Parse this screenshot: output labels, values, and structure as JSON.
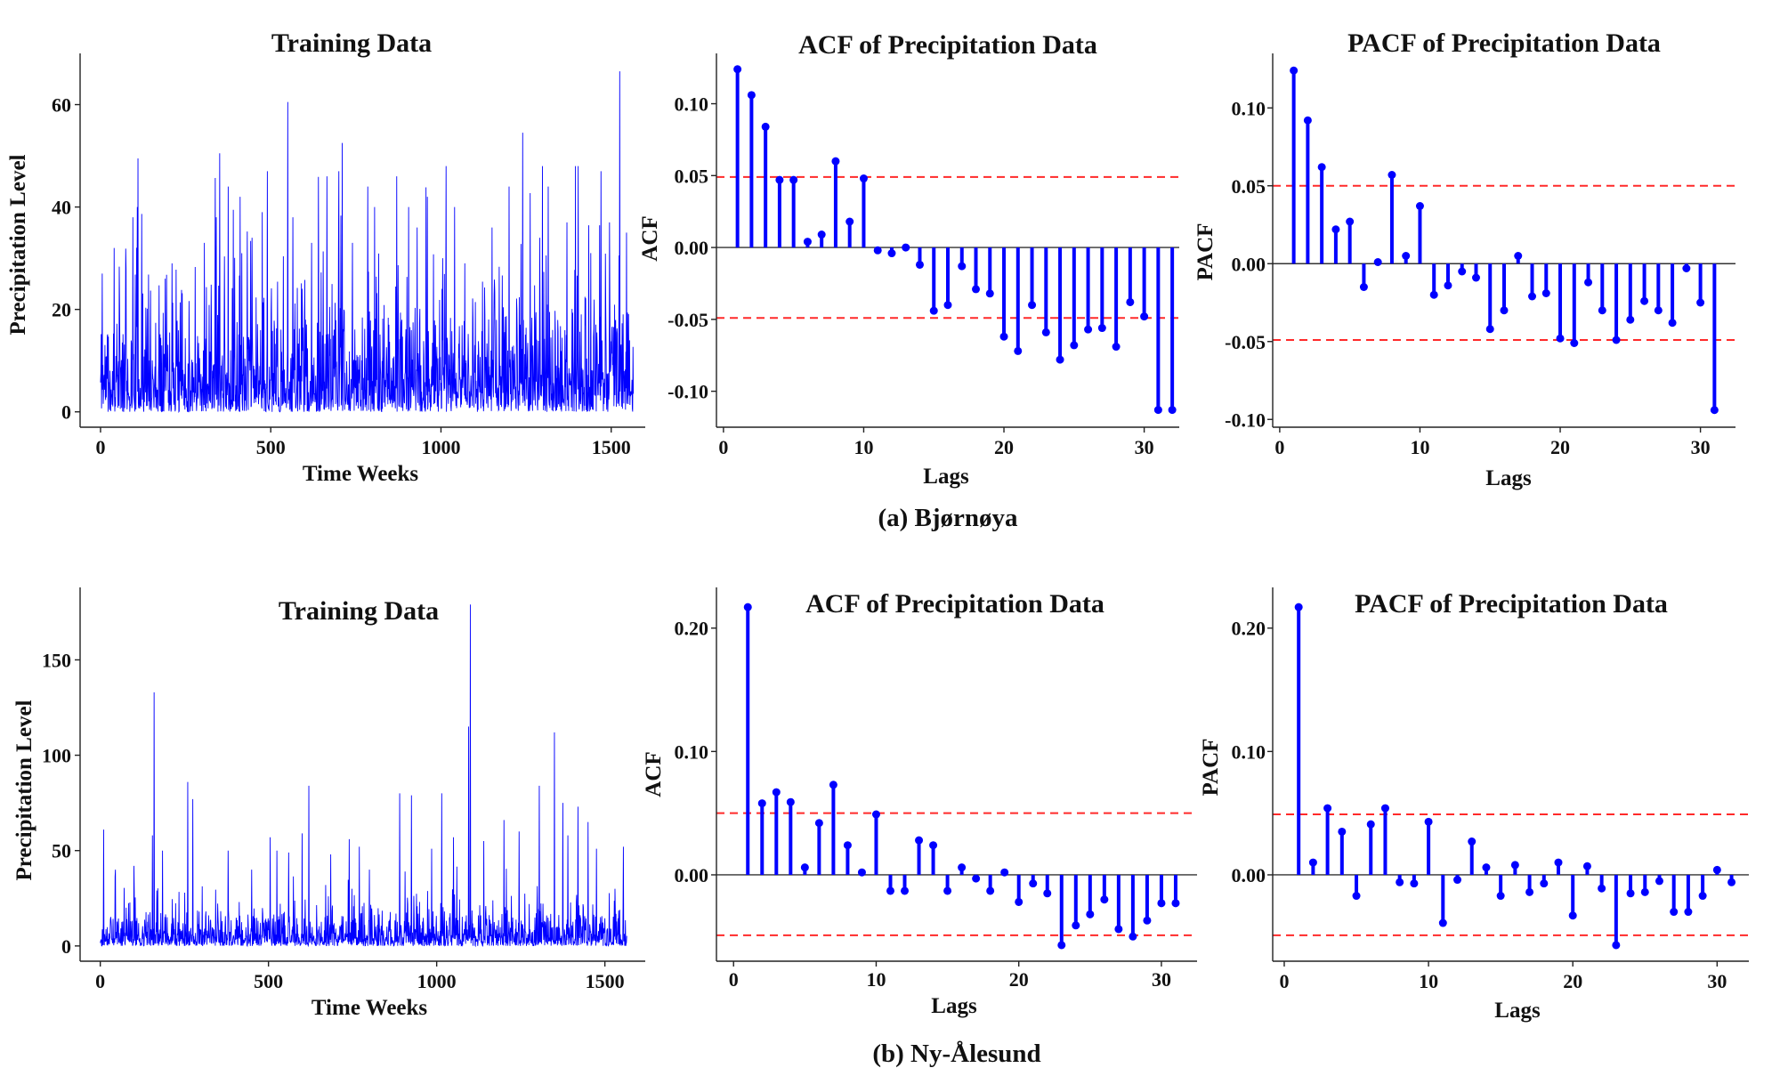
{
  "figure": {
    "captions": [
      "(a)  Bjørnøya",
      "(b) Ny-Ålesund"
    ]
  },
  "colors": {
    "series": "#0000ff",
    "bound": "#ff2a2a",
    "axis": "#222222"
  },
  "chart_data": [
    {
      "id": "a_training",
      "type": "line",
      "title": "Training Data",
      "xlabel": "Time Weeks",
      "ylabel": "Precipitation Level",
      "xlim": [
        -60,
        1600
      ],
      "ylim": [
        -3,
        70
      ],
      "xticks": [
        0,
        500,
        1000,
        1500
      ],
      "yticks": [
        0,
        20,
        40,
        60
      ],
      "n_points": 1566,
      "seed": 11,
      "scale": 8.0,
      "cap": 48,
      "peaks": [
        [
          5,
          27
        ],
        [
          40,
          32
        ],
        [
          75,
          28
        ],
        [
          95,
          38
        ],
        [
          108,
          40
        ],
        [
          110,
          49.5
        ],
        [
          190,
          26
        ],
        [
          210,
          29
        ],
        [
          305,
          33
        ],
        [
          340,
          38
        ],
        [
          350,
          50.5
        ],
        [
          375,
          44
        ],
        [
          410,
          42
        ],
        [
          445,
          34
        ],
        [
          475,
          39
        ],
        [
          490,
          47
        ],
        [
          550,
          60.5
        ],
        [
          565,
          38
        ],
        [
          620,
          33
        ],
        [
          665,
          46
        ],
        [
          700,
          47
        ],
        [
          710,
          52.5
        ],
        [
          740,
          33
        ],
        [
          785,
          44
        ],
        [
          805,
          40
        ],
        [
          870,
          46
        ],
        [
          905,
          40
        ],
        [
          930,
          36
        ],
        [
          960,
          42
        ],
        [
          1005,
          30
        ],
        [
          1040,
          40
        ],
        [
          1070,
          29
        ],
        [
          1150,
          36
        ],
        [
          1200,
          44
        ],
        [
          1240,
          54.5
        ],
        [
          1290,
          34
        ],
        [
          1315,
          44
        ],
        [
          1370,
          37
        ],
        [
          1395,
          48
        ],
        [
          1440,
          31
        ],
        [
          1470,
          47
        ],
        [
          1495,
          37
        ],
        [
          1525,
          66.5
        ],
        [
          1545,
          35
        ]
      ]
    },
    {
      "id": "a_acf",
      "type": "stem",
      "title": "ACF of Precipitation Data",
      "xlabel": "Lags",
      "ylabel": "ACF",
      "xlim": [
        -0.5,
        32.5
      ],
      "ylim": [
        -0.125,
        0.135
      ],
      "xticks": [
        0,
        10,
        20,
        30
      ],
      "yticks": [
        -0.1,
        -0.05,
        0.0,
        0.05,
        0.1
      ],
      "ytick_labels": [
        "-0.10",
        "-0.05",
        "0.00",
        "0.05",
        "0.10"
      ],
      "bounds": [
        0.049,
        -0.049
      ],
      "lags": [
        1,
        2,
        3,
        4,
        5,
        6,
        7,
        8,
        9,
        10,
        11,
        12,
        13,
        14,
        15,
        16,
        17,
        18,
        19,
        20,
        21,
        22,
        23,
        24,
        25,
        26,
        27,
        28,
        29,
        30,
        31,
        32
      ],
      "values": [
        0.124,
        0.106,
        0.084,
        0.047,
        0.047,
        0.004,
        0.009,
        0.06,
        0.018,
        0.048,
        -0.002,
        -0.004,
        0.0,
        -0.012,
        -0.044,
        -0.04,
        -0.013,
        -0.029,
        -0.032,
        -0.062,
        -0.072,
        -0.04,
        -0.059,
        -0.078,
        -0.068,
        -0.057,
        -0.056,
        -0.069,
        -0.038,
        -0.048,
        -0.113,
        -0.113
      ]
    },
    {
      "id": "a_pacf",
      "type": "stem",
      "title": "PACF of Precipitation Data",
      "xlabel": "Lags",
      "ylabel": "PACF",
      "xlim": [
        -0.5,
        32.5
      ],
      "ylim": [
        -0.105,
        0.135
      ],
      "xticks": [
        0,
        10,
        20,
        30
      ],
      "yticks": [
        -0.1,
        -0.05,
        0.0,
        0.05,
        0.1
      ],
      "ytick_labels": [
        "-0.10",
        "-0.05",
        "0.00",
        "0.05",
        "0.10"
      ],
      "bounds": [
        0.05,
        -0.049
      ],
      "lags": [
        1,
        2,
        3,
        4,
        5,
        6,
        7,
        8,
        9,
        10,
        11,
        12,
        13,
        14,
        15,
        16,
        17,
        18,
        19,
        20,
        21,
        22,
        23,
        24,
        25,
        26,
        27,
        28,
        29,
        30,
        31
      ],
      "values": [
        0.124,
        0.092,
        0.062,
        0.022,
        0.027,
        -0.015,
        0.001,
        0.057,
        0.005,
        0.037,
        -0.02,
        -0.014,
        -0.005,
        -0.009,
        -0.042,
        -0.03,
        0.005,
        -0.021,
        -0.019,
        -0.048,
        -0.051,
        -0.012,
        -0.03,
        -0.049,
        -0.036,
        -0.024,
        -0.03,
        -0.038,
        -0.003,
        -0.025,
        -0.094
      ]
    },
    {
      "id": "b_training",
      "type": "line",
      "title": "Training Data",
      "xlabel": "Time Weeks",
      "ylabel": "Precipitation Level",
      "xlim": [
        -60,
        1620
      ],
      "ylim": [
        -8,
        188
      ],
      "xticks": [
        0,
        500,
        1000,
        1500
      ],
      "yticks": [
        0,
        50,
        100,
        150
      ],
      "n_points": 1566,
      "seed": 29,
      "scale": 6.5,
      "cap": 60,
      "peaks": [
        [
          10,
          61
        ],
        [
          45,
          40
        ],
        [
          100,
          42
        ],
        [
          155,
          58
        ],
        [
          160,
          133
        ],
        [
          185,
          50
        ],
        [
          260,
          86
        ],
        [
          275,
          77
        ],
        [
          380,
          50
        ],
        [
          450,
          40
        ],
        [
          505,
          57
        ],
        [
          525,
          50
        ],
        [
          560,
          49
        ],
        [
          600,
          59
        ],
        [
          620,
          84
        ],
        [
          685,
          48
        ],
        [
          740,
          56
        ],
        [
          770,
          52
        ],
        [
          800,
          40
        ],
        [
          890,
          80
        ],
        [
          925,
          79
        ],
        [
          985,
          51
        ],
        [
          1015,
          80
        ],
        [
          1050,
          57
        ],
        [
          1095,
          115
        ],
        [
          1100,
          179
        ],
        [
          1140,
          55
        ],
        [
          1200,
          66
        ],
        [
          1245,
          60
        ],
        [
          1305,
          84
        ],
        [
          1350,
          112
        ],
        [
          1375,
          75
        ],
        [
          1390,
          58
        ],
        [
          1420,
          73
        ],
        [
          1450,
          65
        ],
        [
          1475,
          51
        ],
        [
          1555,
          52
        ]
      ]
    },
    {
      "id": "b_acf",
      "type": "stem",
      "title": "ACF of Precipitation Data",
      "xlabel": "Lags",
      "ylabel": "ACF",
      "xlim": [
        -1.2,
        32.5
      ],
      "ylim": [
        -0.07,
        0.233
      ],
      "xticks": [
        0,
        10,
        20,
        30
      ],
      "yticks": [
        0.0,
        0.1,
        0.2
      ],
      "ytick_labels": [
        "0.00",
        "0.10",
        "0.20"
      ],
      "bounds": [
        0.05,
        -0.049
      ],
      "lags": [
        1,
        2,
        3,
        4,
        5,
        6,
        7,
        8,
        9,
        10,
        11,
        12,
        13,
        14,
        15,
        16,
        17,
        18,
        19,
        20,
        21,
        22,
        23,
        24,
        25,
        26,
        27,
        28,
        29,
        30,
        31
      ],
      "values": [
        0.217,
        0.058,
        0.067,
        0.059,
        0.006,
        0.042,
        0.073,
        0.024,
        0.002,
        0.049,
        -0.013,
        -0.013,
        0.028,
        0.024,
        -0.013,
        0.006,
        -0.003,
        -0.013,
        0.002,
        -0.022,
        -0.007,
        -0.015,
        -0.057,
        -0.041,
        -0.032,
        -0.02,
        -0.044,
        -0.05,
        -0.037,
        -0.023,
        -0.023
      ]
    },
    {
      "id": "b_pacf",
      "type": "stem",
      "title": "PACF of Precipitation Data",
      "xlabel": "Lags",
      "ylabel": "PACF",
      "xlim": [
        -0.8,
        32.2
      ],
      "ylim": [
        -0.07,
        0.233
      ],
      "xticks": [
        0,
        10,
        20,
        30
      ],
      "yticks": [
        0.0,
        0.1,
        0.2
      ],
      "ytick_labels": [
        "0.00",
        "0.10",
        "0.20"
      ],
      "bounds": [
        0.049,
        -0.049
      ],
      "lags": [
        1,
        2,
        3,
        4,
        5,
        6,
        7,
        8,
        9,
        10,
        11,
        12,
        13,
        14,
        15,
        16,
        17,
        18,
        19,
        20,
        21,
        22,
        23,
        24,
        25,
        26,
        27,
        28,
        29,
        30,
        31
      ],
      "values": [
        0.217,
        0.01,
        0.054,
        0.035,
        -0.017,
        0.041,
        0.054,
        -0.006,
        -0.007,
        0.043,
        -0.039,
        -0.004,
        0.027,
        0.006,
        -0.017,
        0.008,
        -0.014,
        -0.007,
        0.01,
        -0.033,
        0.007,
        -0.011,
        -0.057,
        -0.015,
        -0.014,
        -0.005,
        -0.03,
        -0.03,
        -0.017,
        0.004,
        -0.006
      ]
    }
  ]
}
